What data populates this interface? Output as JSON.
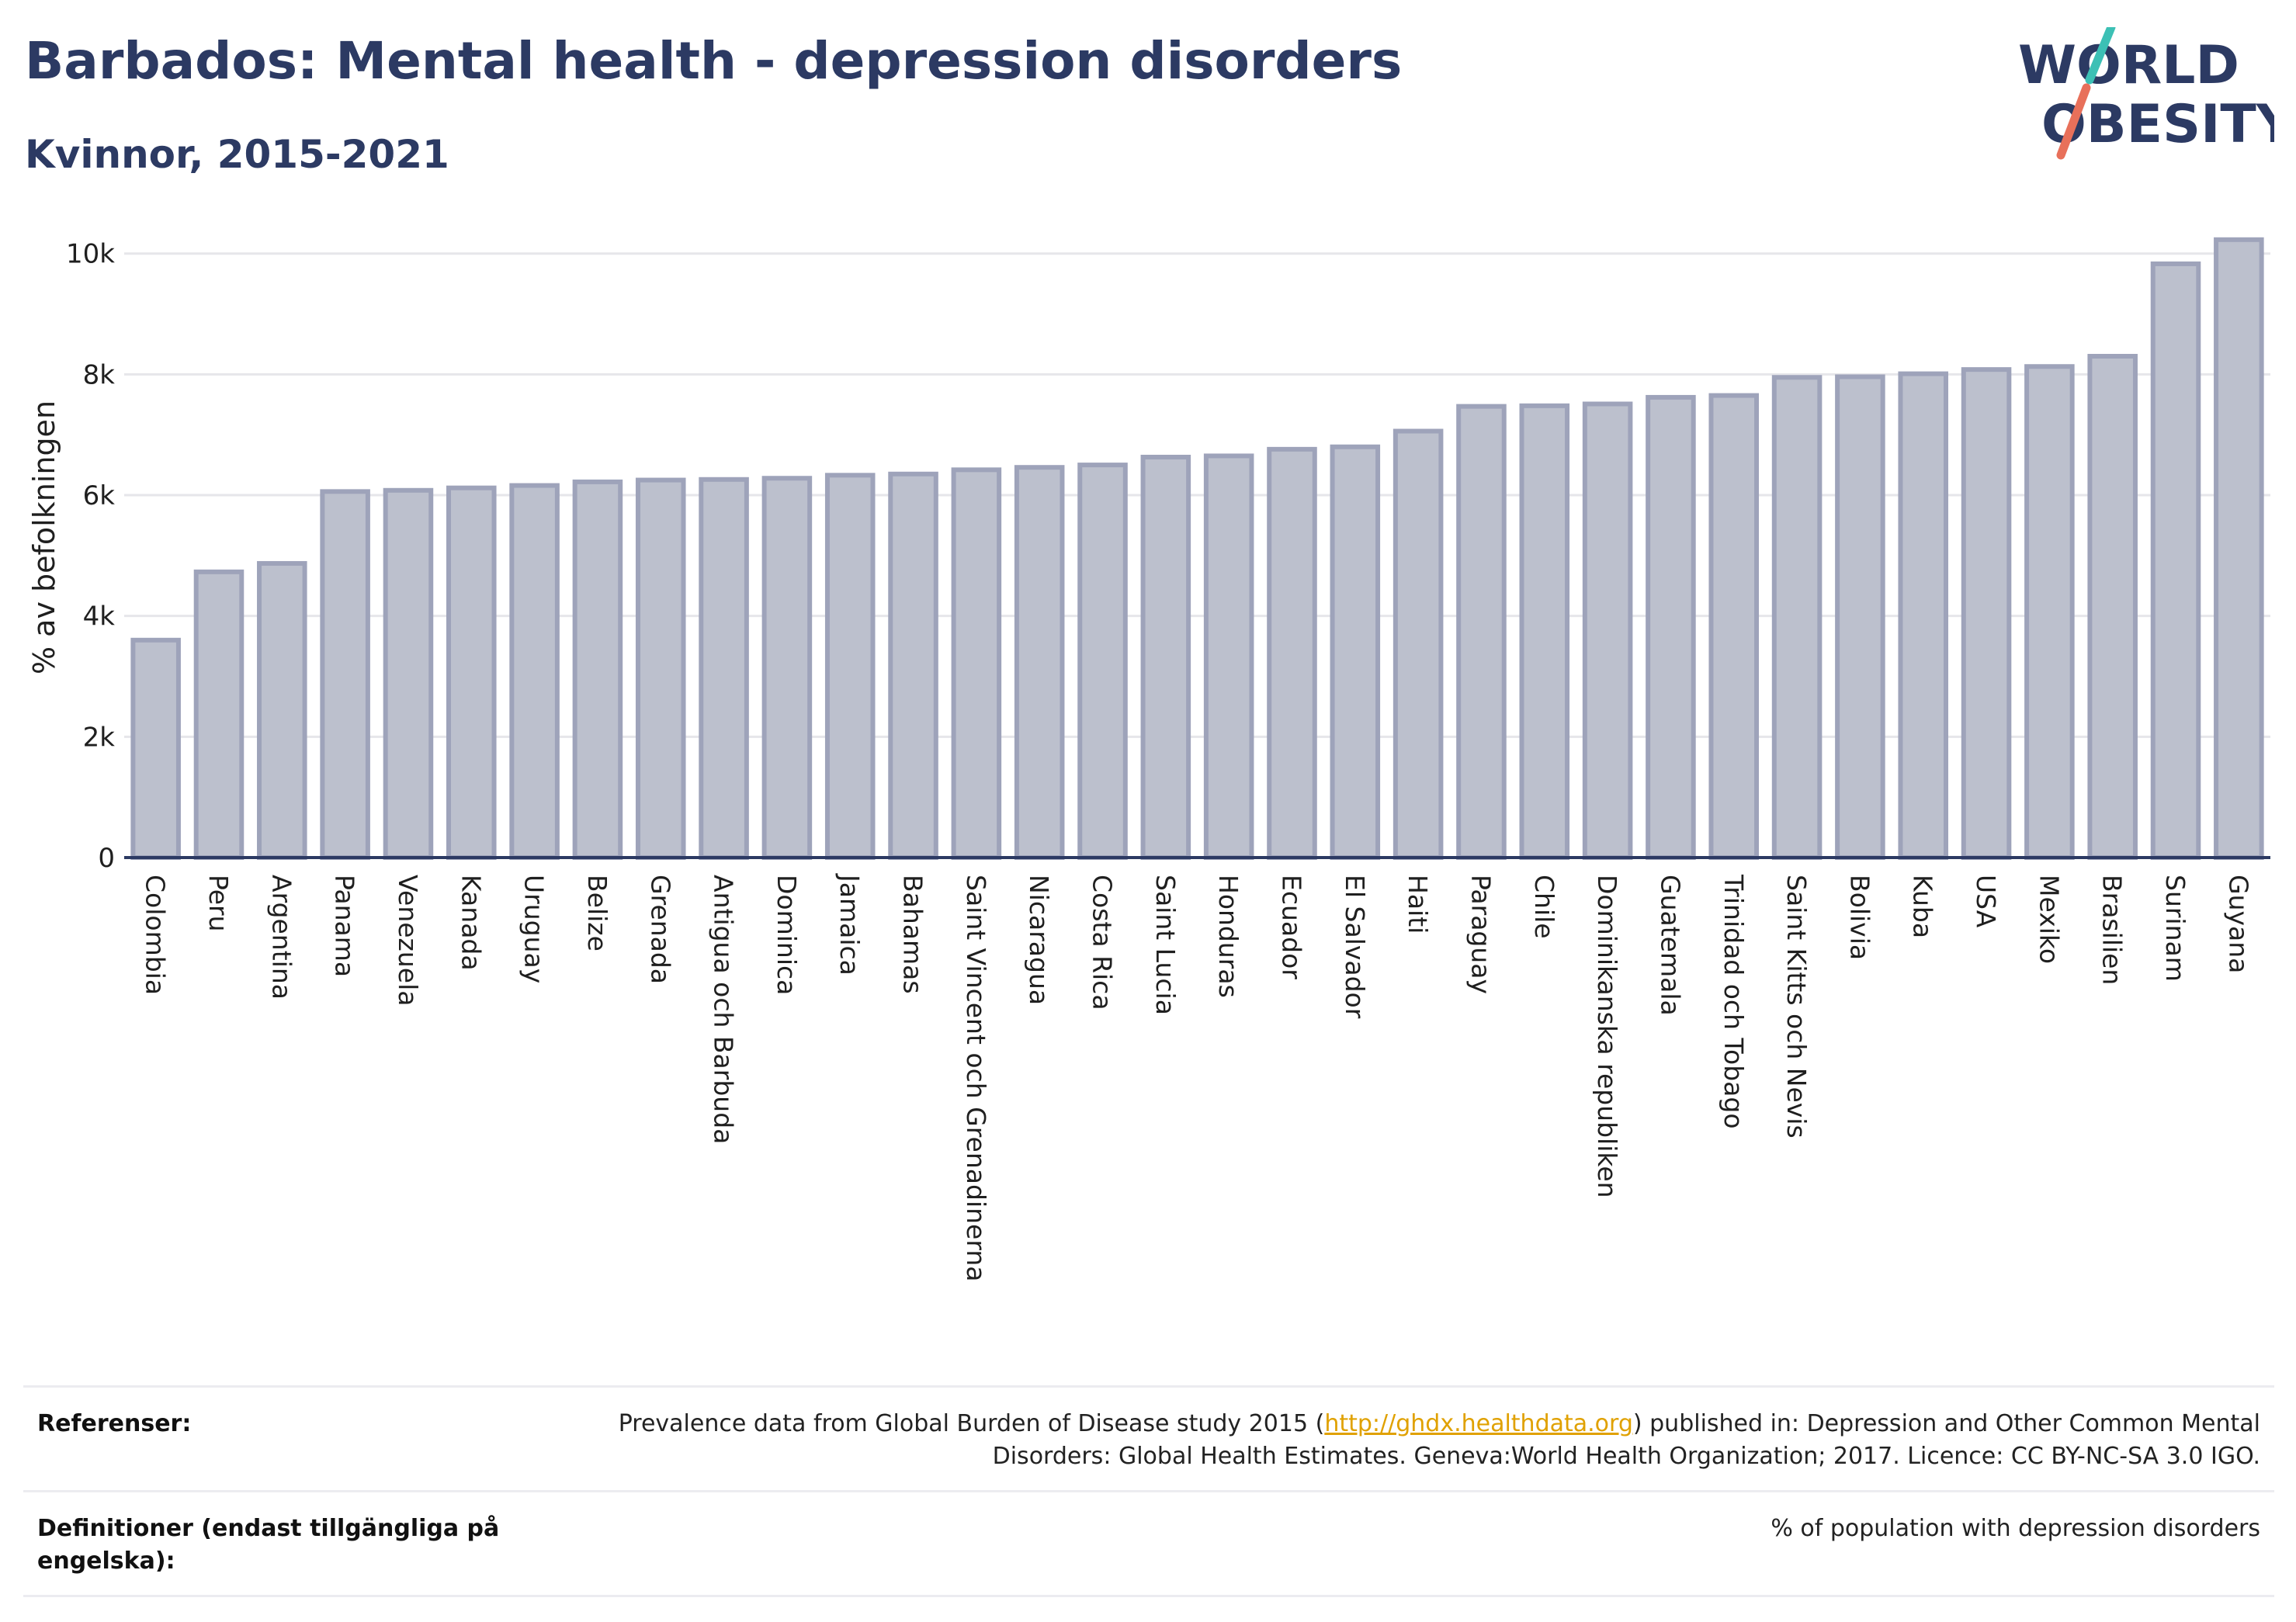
{
  "header": {
    "title": "Barbados: Mental health - depression disorders",
    "subtitle": "Kvinnor, 2015-2021"
  },
  "logo": {
    "line1": "WORLD",
    "line2": "OBESITY",
    "colors": {
      "text": "#2c3a63",
      "slash_top": "#3cc0b5",
      "slash_bottom": "#e8705a"
    }
  },
  "chart_data": {
    "type": "bar",
    "ylabel": "% av befolkningen",
    "ylim": [
      0,
      10600
    ],
    "yticks": [
      0,
      2000,
      4000,
      6000,
      8000,
      10000
    ],
    "ytick_labels": [
      "0",
      "2k",
      "4k",
      "6k",
      "8k",
      "10k"
    ],
    "grid": true,
    "categories": [
      "Colombia",
      "Peru",
      "Argentina",
      "Panama",
      "Venezuela",
      "Kanada",
      "Uruguay",
      "Belize",
      "Grenada",
      "Antigua och Barbuda",
      "Dominica",
      "Jamaica",
      "Bahamas",
      "Saint Vincent och Grenadinerna",
      "Nicaragua",
      "Costa Rica",
      "Saint Lucia",
      "Honduras",
      "Ecuador",
      "El Salvador",
      "Haiti",
      "Paraguay",
      "Chile",
      "Dominikanska republiken",
      "Guatemala",
      "Trinidad och Tobago",
      "Saint Kitts och Nevis",
      "Bolivia",
      "Kuba",
      "USA",
      "Mexiko",
      "Brasilien",
      "Surinam",
      "Guyana"
    ],
    "values": [
      3600,
      4730,
      4870,
      6060,
      6080,
      6120,
      6160,
      6220,
      6250,
      6260,
      6280,
      6330,
      6350,
      6420,
      6460,
      6500,
      6630,
      6650,
      6760,
      6800,
      7060,
      7470,
      7480,
      7510,
      7620,
      7650,
      7950,
      7960,
      8010,
      8080,
      8130,
      8300,
      9830,
      10230
    ],
    "colors": {
      "bar_fill": "#bcc0cd",
      "bar_stroke": "#9ea3ba",
      "baseline": "#2c3a63"
    }
  },
  "footer": {
    "references_label": "Referenser:",
    "references_text_before": "Prevalence data from Global Burden of Disease study 2015 (",
    "references_link": "http://ghdx.healthdata.org",
    "references_text_after": ") published in: Depression and Other Common Mental Disorders: Global Health Estimates. Geneva:World Health Organization; 2017. Licence: CC BY-NC-SA 3.0 IGO.",
    "definitions_label": "Definitioner (endast tillgängliga på engelska):",
    "definitions_text": "% of population with depression disorders"
  }
}
